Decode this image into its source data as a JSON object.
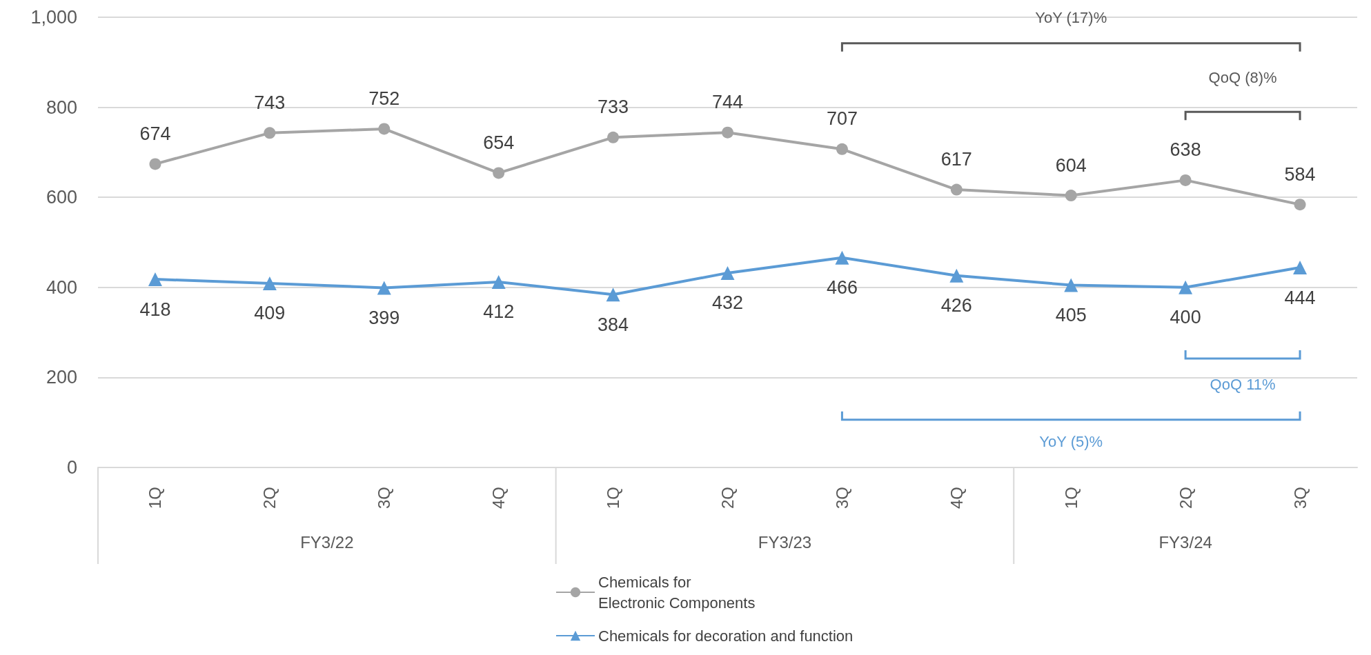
{
  "chart_data": {
    "type": "line",
    "categories": [
      "1Q",
      "2Q",
      "3Q",
      "4Q",
      "1Q",
      "2Q",
      "3Q",
      "4Q",
      "1Q",
      "2Q",
      "3Q"
    ],
    "series": [
      {
        "name": "Chemicals for Electronic Components",
        "color": "#a5a5a5",
        "marker": "circle",
        "values": [
          674,
          743,
          752,
          654,
          733,
          744,
          707,
          617,
          604,
          638,
          584
        ]
      },
      {
        "name": "Chemicals for decoration and function",
        "color": "#5b9bd5",
        "marker": "triangle",
        "values": [
          418,
          409,
          399,
          412,
          384,
          432,
          466,
          426,
          405,
          400,
          444
        ]
      }
    ],
    "ylim": [
      0,
      1000
    ],
    "yticks": [
      0,
      200,
      400,
      600,
      800,
      {
        "value": 1000,
        "label": "1,000"
      }
    ],
    "grid": "y",
    "legend": "bottom",
    "data_labels": true,
    "annotations": [
      "FY3/22",
      "FY3/23",
      "FY3/24",
      "YoY (17)%",
      "QoQ (8)%",
      "QoQ 11%",
      "YoY (5)%"
    ]
  }
}
